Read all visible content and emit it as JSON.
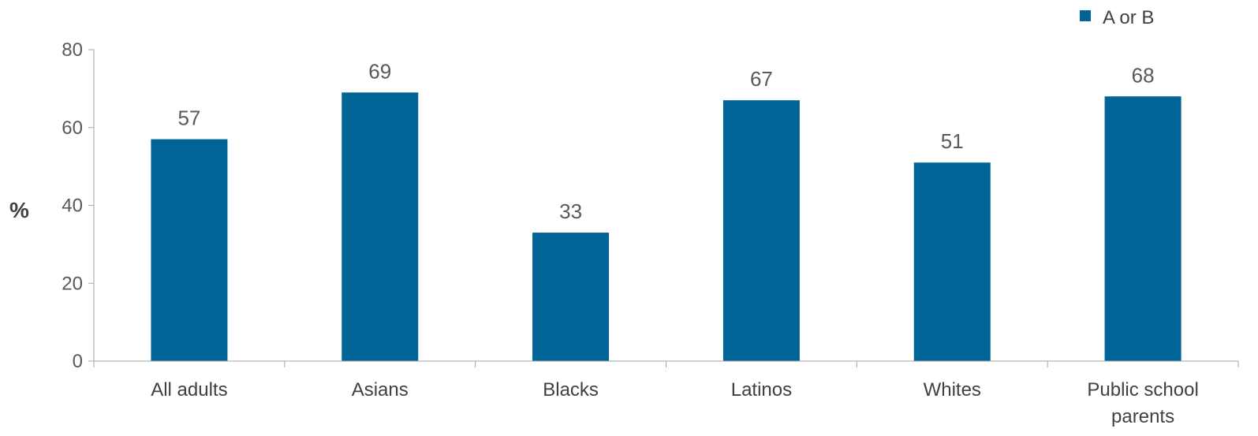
{
  "chart_data": {
    "type": "bar",
    "categories": [
      "All adults",
      "Asians",
      "Blacks",
      "Latinos",
      "Whites",
      "Public school parents"
    ],
    "series": [
      {
        "name": "A or B",
        "values": [
          57,
          69,
          33,
          67,
          51,
          68
        ]
      }
    ],
    "ylabel": "%",
    "ylim": [
      0,
      80
    ],
    "yticks": [
      0,
      20,
      40,
      60,
      80
    ],
    "legend": "top-right",
    "grid": false,
    "data_labels": true,
    "colors": {
      "bar": "#006496",
      "text": "#595959"
    }
  }
}
